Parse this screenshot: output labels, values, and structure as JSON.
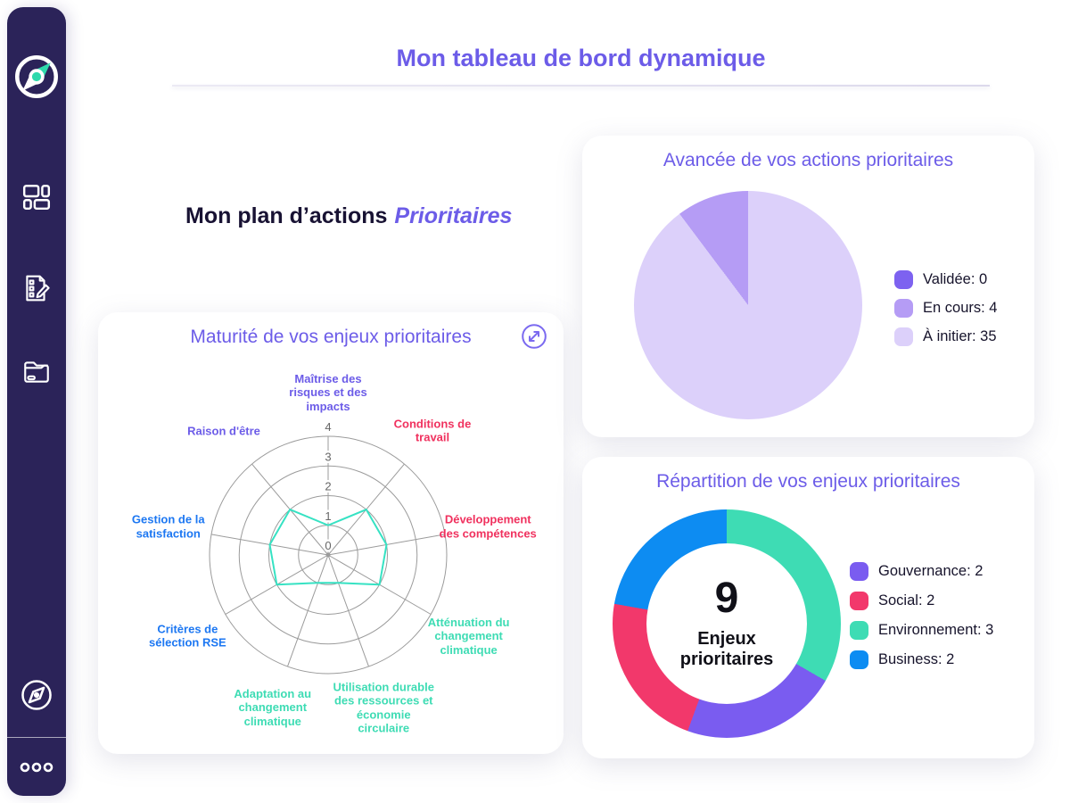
{
  "header": {
    "title": "Mon tableau de bord dynamique"
  },
  "plan_heading": {
    "main": "Mon plan d’actions",
    "accent": "Prioritaires"
  },
  "sidebar": {
    "logo_icon": "compass-logo",
    "items": [
      {
        "icon": "dashboard-grid",
        "active": true
      },
      {
        "icon": "checklist-pen",
        "active": false
      },
      {
        "icon": "folder",
        "active": false
      }
    ],
    "bottom_icon": "compass-outline",
    "more_icon": "three-dots"
  },
  "colors": {
    "accent_purple": "#6C5CE8",
    "sidebar_bg": "#2B2359",
    "active_item_bg": "#5948D8",
    "logo_teal": "#2ED9AC",
    "text_dark": "#181233"
  },
  "chart_data": [
    {
      "id": "radar_maturite",
      "type": "radar",
      "title": "Maturité de vos enjeux prioritaires",
      "max": 4,
      "ticks": [
        0,
        1,
        2,
        3,
        4
      ],
      "line_color": "#36E2C3",
      "grid_color": "#9b9b9b",
      "axes": [
        {
          "label": "Maîtrise des risques et des impacts",
          "value": 1,
          "color": "#6C5CE8"
        },
        {
          "label": "Conditions de travail",
          "value": 2,
          "color": "#F0315E"
        },
        {
          "label": "Développement des compétences",
          "value": 2,
          "color": "#F0315E"
        },
        {
          "label": "Atténuation du changement climatique",
          "value": 2,
          "color": "#3EDCB4"
        },
        {
          "label": "Utilisation durable des ressources et économie circulaire",
          "value": 1,
          "color": "#3EDCB4"
        },
        {
          "label": "Adaptation au changement climatique",
          "value": 1,
          "color": "#3EDCB4"
        },
        {
          "label": "Critères de sélection RSE",
          "value": 2,
          "color": "#1C77F2"
        },
        {
          "label": "Gestion de la satisfaction",
          "value": 2,
          "color": "#1C77F2"
        },
        {
          "label": "Raison d'être",
          "value": 2,
          "color": "#6C5CE8"
        }
      ]
    },
    {
      "id": "pie_avancee",
      "type": "pie",
      "title": "Avancée de vos actions prioritaires",
      "slices": [
        {
          "label": "Validée",
          "value": 0,
          "color": "#7D62F0"
        },
        {
          "label": "En cours",
          "value": 4,
          "color": "#B59CF5"
        },
        {
          "label": "À initier",
          "value": 35,
          "color": "#DCD0FA"
        }
      ],
      "draw_order": [
        "À initier",
        "En cours"
      ],
      "legend_position": "right"
    },
    {
      "id": "donut_repartition",
      "type": "donut",
      "title": "Répartition de vos enjeux prioritaires",
      "center_value": "9",
      "center_label": "Enjeux prioritaires",
      "slices": [
        {
          "label": "Gouvernance",
          "value": 2,
          "color": "#7A5CF0"
        },
        {
          "label": "Social",
          "value": 2,
          "color": "#F2386B"
        },
        {
          "label": "Environnement",
          "value": 3,
          "color": "#3EDCB4"
        },
        {
          "label": "Business",
          "value": 2,
          "color": "#0D8CF2"
        }
      ],
      "draw_order": [
        "Environnement",
        "Gouvernance",
        "Social",
        "Business"
      ],
      "legend_position": "right"
    }
  ]
}
